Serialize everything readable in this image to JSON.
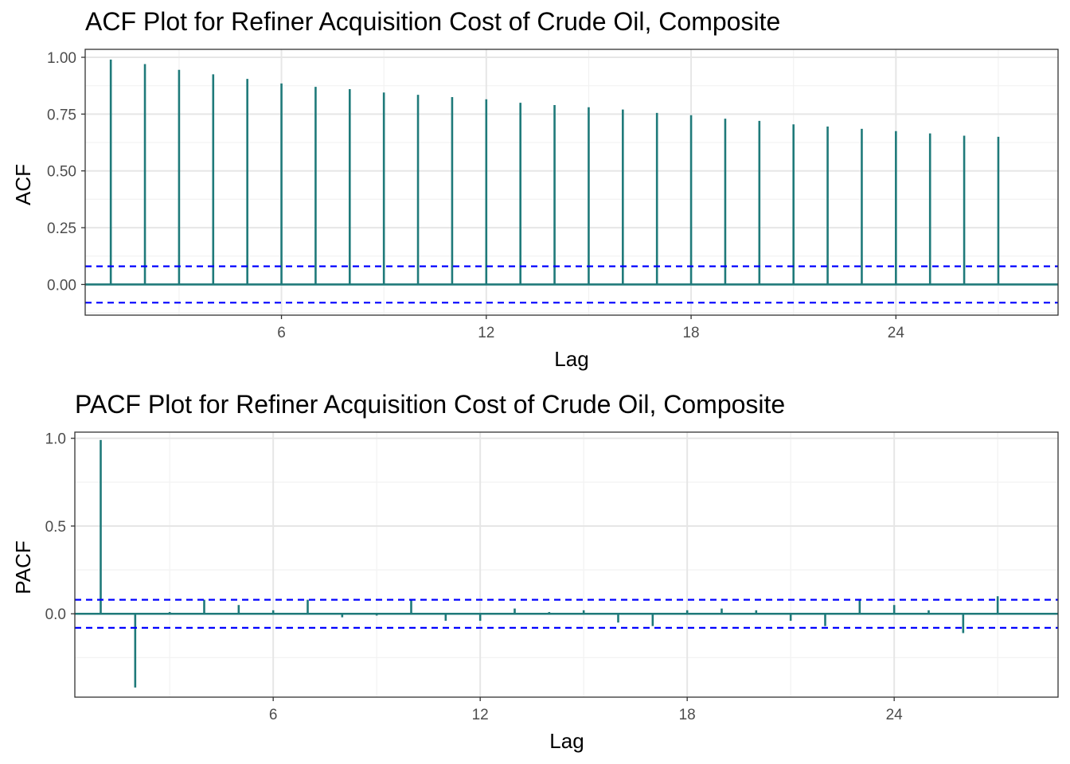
{
  "colors": {
    "bar": "#1f7a7a",
    "confidence": "#0000ff",
    "grid_major": "#e6e6e6",
    "grid_minor": "#f2f2f2",
    "panel_border": "#333333"
  },
  "chart_data": [
    {
      "type": "bar",
      "title": "ACF Plot for Refiner Acquisition Cost of Crude Oil, Composite",
      "xlabel": "Lag",
      "ylabel": "ACF",
      "xlim": [
        0.25,
        28.75
      ],
      "ylim": [
        -0.135,
        1.035
      ],
      "x_ticks": [
        6,
        12,
        18,
        24
      ],
      "y_ticks": [
        0.0,
        0.25,
        0.5,
        0.75,
        1.0
      ],
      "y_tick_labels": [
        "0.00",
        "0.25",
        "0.50",
        "0.75",
        "1.00"
      ],
      "confidence_limit": 0.08,
      "grid": true,
      "x": [
        1,
        2,
        3,
        4,
        5,
        6,
        7,
        8,
        9,
        10,
        11,
        12,
        13,
        14,
        15,
        16,
        17,
        18,
        19,
        20,
        21,
        22,
        23,
        24,
        25,
        26,
        27
      ],
      "values": [
        0.99,
        0.97,
        0.945,
        0.925,
        0.905,
        0.885,
        0.87,
        0.86,
        0.845,
        0.835,
        0.825,
        0.815,
        0.8,
        0.79,
        0.78,
        0.77,
        0.755,
        0.745,
        0.73,
        0.72,
        0.705,
        0.695,
        0.685,
        0.675,
        0.665,
        0.655,
        0.65
      ]
    },
    {
      "type": "bar",
      "title": "PACF Plot for Refiner Acquisition Cost of Crude Oil, Composite",
      "xlabel": "Lag",
      "ylabel": "PACF",
      "xlim": [
        0.25,
        28.75
      ],
      "ylim": [
        -0.475,
        1.035
      ],
      "x_ticks": [
        6,
        12,
        18,
        24
      ],
      "y_ticks": [
        0.0,
        0.5,
        1.0
      ],
      "y_tick_labels": [
        "0.0",
        "0.5",
        "1.0"
      ],
      "confidence_limit": 0.08,
      "grid": true,
      "x": [
        1,
        2,
        3,
        4,
        5,
        6,
        7,
        8,
        9,
        10,
        11,
        12,
        13,
        14,
        15,
        16,
        17,
        18,
        19,
        20,
        21,
        22,
        23,
        24,
        25,
        26,
        27
      ],
      "values": [
        0.99,
        -0.42,
        0.01,
        0.08,
        0.05,
        0.02,
        0.08,
        -0.02,
        -0.01,
        0.08,
        -0.04,
        -0.04,
        0.03,
        0.01,
        0.02,
        -0.05,
        -0.07,
        0.02,
        0.03,
        0.02,
        -0.04,
        -0.07,
        0.08,
        0.05,
        0.02,
        -0.11,
        0.1
      ]
    }
  ]
}
